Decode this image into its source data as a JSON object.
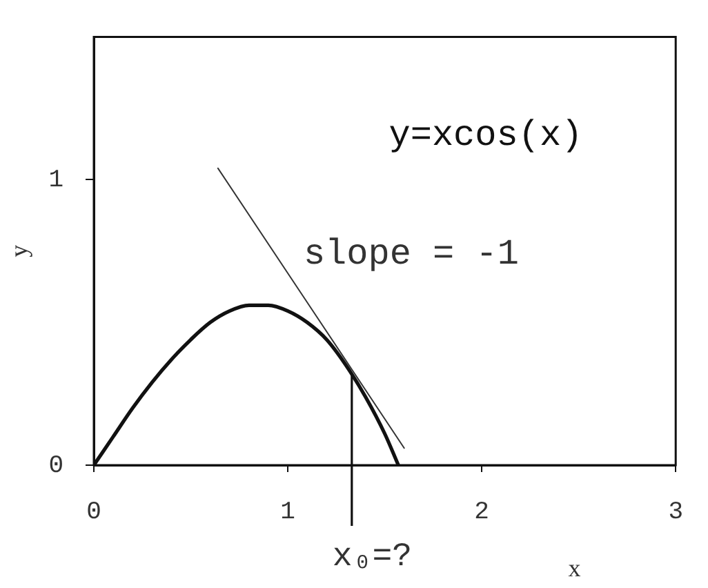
{
  "chart_data": {
    "type": "line",
    "xlabel": "x",
    "ylabel": "y",
    "series": [
      {
        "name": "y=xcos(x)",
        "color": "#111111",
        "x": [
          0,
          0.1,
          0.2,
          0.3,
          0.4,
          0.5,
          0.6,
          0.7,
          0.8,
          0.86,
          0.9,
          1.0,
          1.1,
          1.2,
          1.3,
          1.4,
          1.5,
          1.57
        ],
        "values": [
          0,
          0.1,
          0.2,
          0.29,
          0.37,
          0.44,
          0.5,
          0.54,
          0.56,
          0.56,
          0.56,
          0.54,
          0.5,
          0.44,
          0.35,
          0.24,
          0.11,
          0
        ]
      },
      {
        "name": "slope = -1",
        "color": "#333333",
        "x": [
          0.64,
          1.6
        ],
        "values": [
          1.04,
          0.06
        ]
      }
    ],
    "annotations": [
      {
        "text": "x₀=?",
        "x": 1.33,
        "y": 0.32
      }
    ],
    "xlim": [
      0,
      3
    ],
    "ylim": [
      0,
      1.5
    ],
    "xticks": [
      0,
      1,
      2,
      3
    ],
    "yticks": [
      0,
      1
    ],
    "grid": false,
    "legend": false,
    "marker": "none"
  }
}
